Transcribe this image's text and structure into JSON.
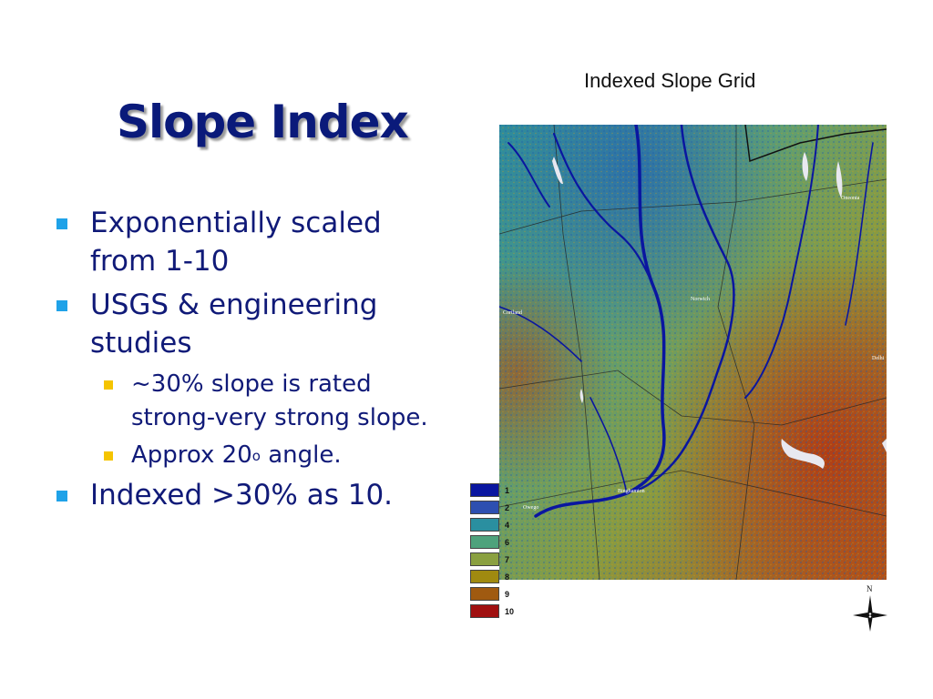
{
  "slide": {
    "title": "Slope Index",
    "bullets": [
      {
        "text": "Exponentially scaled from 1-10"
      },
      {
        "text": "USGS & engineering studies",
        "sub": [
          {
            "text": "~30% slope is rated strong-very strong slope."
          },
          {
            "text_before": "Approx 20",
            "sup": "o",
            "text_after": " angle."
          }
        ]
      },
      {
        "text": "Indexed >30% as 10."
      }
    ]
  },
  "map": {
    "title": "Indexed Slope Grid",
    "place_labels": [
      "Binghamton",
      "Norwich",
      "Cortland",
      "Owego",
      "Delhi",
      "Oneonta"
    ],
    "north_label": "N"
  },
  "legend": [
    {
      "label": "1",
      "color": "#0a16a0"
    },
    {
      "label": "2",
      "color": "#2d4fb0"
    },
    {
      "label": "4",
      "color": "#2a8fa0"
    },
    {
      "label": "6",
      "color": "#4ea27c"
    },
    {
      "label": "7",
      "color": "#8aa040"
    },
    {
      "label": "8",
      "color": "#a08a10"
    },
    {
      "label": "9",
      "color": "#a05a10"
    },
    {
      "label": "10",
      "color": "#a01010"
    }
  ]
}
